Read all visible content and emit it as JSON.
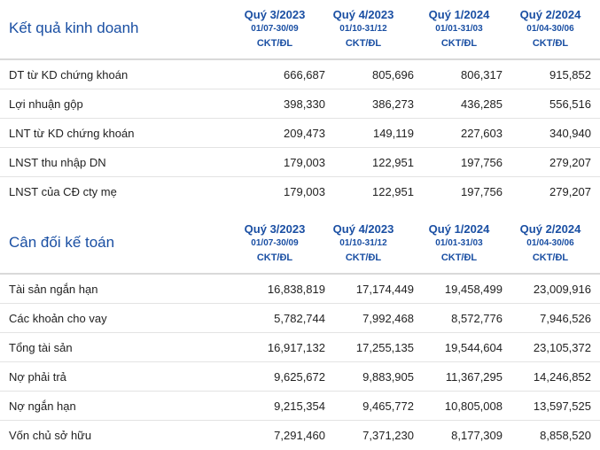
{
  "sections": [
    {
      "title": "Kết quả kinh doanh",
      "periods": [
        {
          "quarter": "Quý 3/2023",
          "range": "01/07-30/09",
          "audit": "CKT/ĐL"
        },
        {
          "quarter": "Quý 4/2023",
          "range": "01/10-31/12",
          "audit": "CKT/ĐL"
        },
        {
          "quarter": "Quý 1/2024",
          "range": "01/01-31/03",
          "audit": "CKT/ĐL"
        },
        {
          "quarter": "Quý 2/2024",
          "range": "01/04-30/06",
          "audit": "CKT/ĐL"
        }
      ],
      "rows": [
        {
          "label": "DT từ KD chứng khoán",
          "values": [
            "666,687",
            "805,696",
            "806,317",
            "915,852"
          ]
        },
        {
          "label": "Lợi nhuận gộp",
          "values": [
            "398,330",
            "386,273",
            "436,285",
            "556,516"
          ]
        },
        {
          "label": "LNT từ KD chứng khoán",
          "values": [
            "209,473",
            "149,119",
            "227,603",
            "340,940"
          ]
        },
        {
          "label": "LNST thu nhập DN",
          "values": [
            "179,003",
            "122,951",
            "197,756",
            "279,207"
          ]
        },
        {
          "label": "LNST của CĐ cty mẹ",
          "values": [
            "179,003",
            "122,951",
            "197,756",
            "279,207"
          ]
        }
      ]
    },
    {
      "title": "Cân đối kế toán",
      "periods": [
        {
          "quarter": "Quý 3/2023",
          "range": "01/07-30/09",
          "audit": "CKT/ĐL"
        },
        {
          "quarter": "Quý 4/2023",
          "range": "01/10-31/12",
          "audit": "CKT/ĐL"
        },
        {
          "quarter": "Quý 1/2024",
          "range": "01/01-31/03",
          "audit": "CKT/ĐL"
        },
        {
          "quarter": "Quý 2/2024",
          "range": "01/04-30/06",
          "audit": "CKT/ĐL"
        }
      ],
      "rows": [
        {
          "label": "Tài sản ngắn hạn",
          "values": [
            "16,838,819",
            "17,174,449",
            "19,458,499",
            "23,009,916"
          ]
        },
        {
          "label": "Các khoản cho vay",
          "values": [
            "5,782,744",
            "7,992,468",
            "8,572,776",
            "7,946,526"
          ]
        },
        {
          "label": "Tổng tài sản",
          "values": [
            "16,917,132",
            "17,255,135",
            "19,544,604",
            "23,105,372"
          ]
        },
        {
          "label": "Nợ phải trả",
          "values": [
            "9,625,672",
            "9,883,905",
            "11,367,295",
            "14,246,852"
          ]
        },
        {
          "label": "Nợ ngắn hạn",
          "values": [
            "9,215,354",
            "9,465,772",
            "10,805,008",
            "13,597,525"
          ]
        },
        {
          "label": "Vốn chủ sở hữu",
          "values": [
            "7,291,460",
            "7,371,230",
            "8,177,309",
            "8,858,520"
          ]
        }
      ]
    }
  ]
}
